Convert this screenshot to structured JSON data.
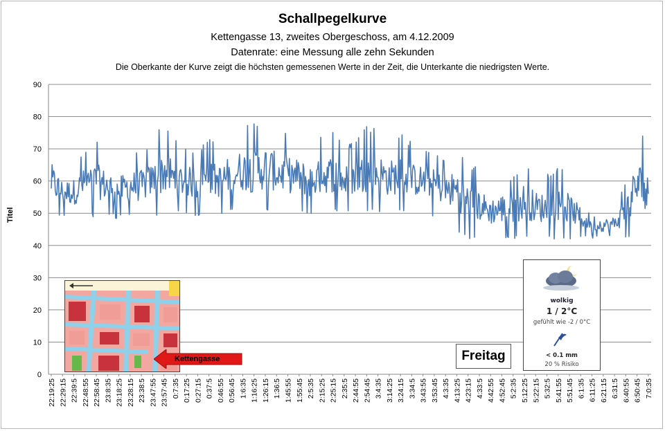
{
  "chart_data": {
    "type": "line",
    "title": "Schallpegelkurve",
    "subtitle_lines": [
      "Kettengasse 13, zweites Obergeschoss, am 4.12.2009",
      "Datenrate: eine Messung alle zehn Sekunden",
      "Die Oberkante der Kurve zeigt die höchsten gemessenen Werte  in der Zeit, die Unterkante  die niedrigsten Werte."
    ],
    "ylabel": "Titel",
    "ylim": [
      0,
      90
    ],
    "yticks": [
      0,
      10,
      20,
      30,
      40,
      50,
      60,
      70,
      80,
      90
    ],
    "grid": true,
    "x": [
      "22:19:25",
      "22:29:15",
      "22:39:5",
      "22:48:55",
      "22:58:45",
      "23:8:35",
      "23:18:25",
      "23:28:15",
      "23:38:5",
      "23:47:55",
      "23:57:45",
      "0:7:35",
      "0:17:25",
      "0:27:15",
      "0:37:5",
      "0:46:55",
      "0:56:45",
      "1:6:35",
      "1:16:25",
      "1:26:15",
      "1:36:5",
      "1:45:55",
      "1:55:45",
      "2:5:35",
      "2:15:25",
      "2:25:15",
      "2:35:5",
      "2:44:55",
      "2:54:45",
      "3:4:35",
      "3:14:25",
      "3:24:15",
      "3:34:5",
      "3:43:55",
      "3:53:45",
      "4:3:35",
      "4:13:25",
      "4:23:15",
      "4:33:5",
      "4:42:55",
      "4:52:45",
      "5:2:35",
      "5:12:25",
      "5:22:15",
      "5:32:5",
      "5:41:55",
      "5:51:45",
      "6:1:35",
      "6:11:25",
      "6:21:15",
      "6:31:5",
      "6:40:55",
      "6:50:45",
      "7:0:35"
    ],
    "series": [
      {
        "color": "#4a7ab5",
        "low": [
          48,
          49,
          48,
          50,
          48,
          49,
          48,
          49,
          48,
          50,
          48,
          49,
          50,
          49,
          50,
          49,
          50,
          50,
          49,
          50,
          50,
          50,
          50,
          49,
          50,
          50,
          50,
          50,
          50,
          50,
          49,
          50,
          50,
          50,
          49,
          48,
          44,
          42,
          42,
          42,
          42,
          42,
          42,
          42,
          42,
          42,
          42,
          42,
          42,
          42,
          42,
          42,
          42,
          42
        ],
        "high": [
          73,
          65,
          66,
          70,
          73,
          69,
          67,
          69,
          70,
          72,
          80,
          73,
          71,
          70,
          73,
          72,
          76,
          78,
          78,
          80,
          77,
          75,
          74,
          72,
          74,
          76,
          71,
          73,
          77,
          76,
          74,
          75,
          72,
          71,
          70,
          67,
          72,
          66,
          64,
          60,
          62,
          61,
          67,
          63,
          62,
          65,
          62,
          56,
          53,
          51,
          52,
          60,
          78,
          70
        ]
      }
    ]
  },
  "inset_map": {
    "label": "Kettengasse"
  },
  "day_label": "Freitag",
  "weather": {
    "icon": "cloud-moon-icon",
    "condition": "wolkig",
    "temperature": "1 / 2°C",
    "feels_like": "gefühlt wie -2 / 0°C",
    "rain_icon": "umbrella-icon",
    "precipitation": "< 0.1 mm",
    "risk": "20 % Risiko"
  }
}
